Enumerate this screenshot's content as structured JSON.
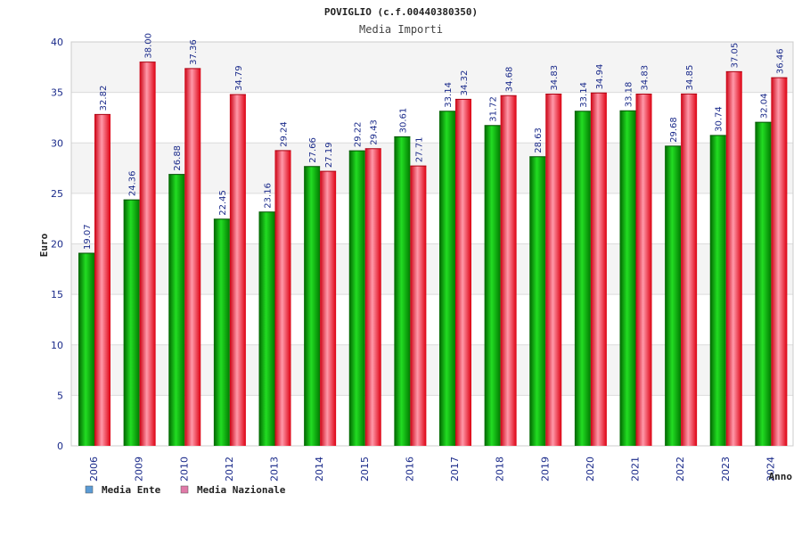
{
  "chart_data": {
    "type": "bar",
    "title": "POVIGLIO (c.f.00440380350)",
    "subtitle": "Media Importi",
    "ylabel": "Euro",
    "xlabel": "Anno",
    "ylim": [
      0,
      40
    ],
    "yticks": [
      0,
      5,
      10,
      15,
      20,
      25,
      30,
      35,
      40
    ],
    "categories": [
      "2006",
      "2009",
      "2010",
      "2012",
      "2013",
      "2014",
      "2015",
      "2016",
      "2017",
      "2018",
      "2019",
      "2020",
      "2021",
      "2022",
      "2023",
      "2024"
    ],
    "series": [
      {
        "name": "Media Ente",
        "color": "#00aa00",
        "values": [
          19.07,
          24.36,
          26.88,
          22.45,
          23.16,
          27.66,
          29.22,
          30.61,
          33.14,
          31.72,
          28.63,
          33.14,
          33.18,
          29.68,
          30.74,
          32.04
        ],
        "labels": [
          "19.07",
          "24.36",
          "26.88",
          "22.45",
          "23.16",
          "27.66",
          "29.22",
          "30.61",
          "33.14",
          "31.72",
          "28.63",
          "33.14",
          "33.18",
          "29.68",
          "30.74",
          "32.04"
        ]
      },
      {
        "name": "Media Nazionale",
        "color": "#ee1122",
        "values": [
          32.82,
          38.0,
          37.36,
          34.79,
          29.24,
          27.19,
          29.43,
          27.71,
          34.32,
          34.68,
          34.83,
          34.94,
          34.83,
          34.85,
          37.05,
          36.46
        ],
        "labels": [
          "32.82",
          "38.00",
          "37.36",
          "34.79",
          "29.24",
          "27.19",
          "29.43",
          "27.71",
          "34.32",
          "34.68",
          "34.83",
          "34.94",
          "34.83",
          "34.85",
          "37.05",
          "36.46"
        ]
      }
    ],
    "legend": {
      "position": "bottom-left",
      "items": [
        {
          "label": "Media Ente",
          "swatch": "#5b9bd5"
        },
        {
          "label": "Media Nazionale",
          "swatch": "#e07aa8"
        }
      ]
    }
  }
}
